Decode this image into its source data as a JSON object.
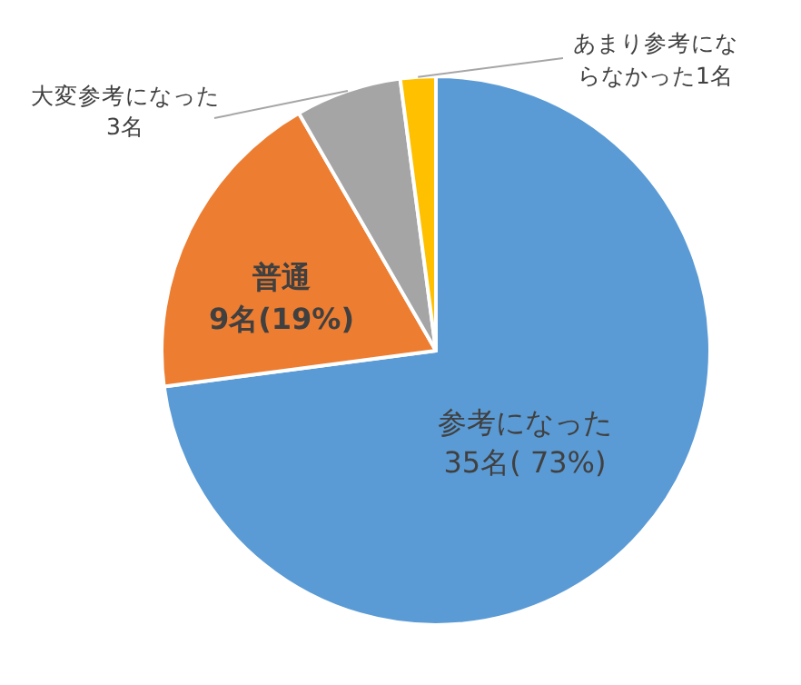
{
  "chart_data": {
    "type": "pie",
    "categories": [
      "参考になった",
      "普通",
      "大変参考になった",
      "あまり参考にならなかった"
    ],
    "values": [
      35,
      9,
      3,
      1
    ],
    "value_labels": [
      "35名( 73%)",
      "9名(19%)",
      "3名",
      "1名"
    ],
    "colors": [
      "#5b9bd5",
      "#ed7d31",
      "#a5a5a5",
      "#ffc000"
    ]
  }
}
